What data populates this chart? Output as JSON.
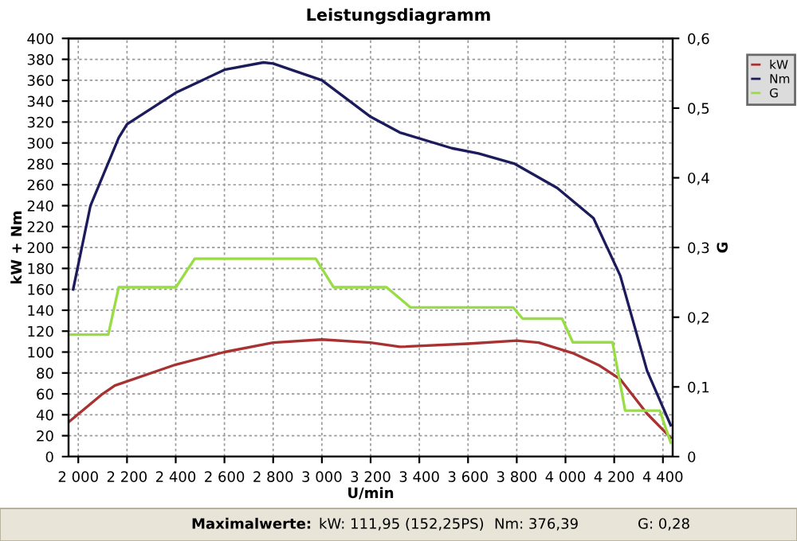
{
  "chart_data": {
    "type": "line",
    "title": "Leistungsdiagramm",
    "xlabel": "U/min",
    "ylabel": "kW + Nm",
    "y2label": "G",
    "xlim": [
      1960,
      4440
    ],
    "ylim": [
      0,
      400
    ],
    "y2lim": [
      0,
      0.6
    ],
    "xticks": [
      {
        "value": 2000,
        "label": "2 000"
      },
      {
        "value": 2200,
        "label": "2 200"
      },
      {
        "value": 2400,
        "label": "2 400"
      },
      {
        "value": 2600,
        "label": "2 600"
      },
      {
        "value": 2800,
        "label": "2 800"
      },
      {
        "value": 3000,
        "label": "3 000"
      },
      {
        "value": 3200,
        "label": "3 200"
      },
      {
        "value": 3400,
        "label": "3 400"
      },
      {
        "value": 3600,
        "label": "3 600"
      },
      {
        "value": 3800,
        "label": "3 800"
      },
      {
        "value": 4000,
        "label": "4 000"
      },
      {
        "value": 4200,
        "label": "4 200"
      },
      {
        "value": 4400,
        "label": "4 400"
      }
    ],
    "yticks": [
      0,
      20,
      40,
      60,
      80,
      100,
      120,
      140,
      160,
      180,
      200,
      220,
      240,
      260,
      280,
      300,
      320,
      340,
      360,
      380,
      400
    ],
    "y2ticks": [
      0,
      {
        "value": 0.1,
        "label": "0,1"
      },
      {
        "value": 0.2,
        "label": "0,2"
      },
      {
        "value": 0.3,
        "label": "0,3"
      },
      {
        "value": 0.4,
        "label": "0,4"
      },
      {
        "value": 0.5,
        "label": "0,5"
      },
      {
        "value": 0.6,
        "label": "0,6"
      }
    ],
    "grid": true,
    "legend": "top right",
    "line_style": "solid",
    "series": [
      {
        "name": "kW",
        "color": "#a83232",
        "x": [
          1960,
          2100,
          2150,
          2400,
          2600,
          2800,
          3000,
          3200,
          3320,
          3600,
          3800,
          3890,
          4030,
          4140,
          4225,
          4335,
          4432
        ],
        "values": [
          33,
          60,
          68,
          88,
          100,
          109,
          112,
          109,
          105,
          108,
          111,
          109,
          99,
          87,
          74,
          41,
          18
        ]
      },
      {
        "name": "Nm",
        "color": "#1c1c5c",
        "x": [
          1979,
          2050,
          2166,
          2200,
          2400,
          2600,
          2760,
          2800,
          3000,
          3200,
          3320,
          3533,
          3643,
          3792,
          3966,
          4115,
          4225,
          4335,
          4432
        ],
        "values": [
          160,
          240,
          305,
          318,
          348,
          370,
          377,
          376,
          360,
          325,
          310,
          295,
          290,
          280,
          257,
          228,
          173,
          82,
          30
        ]
      },
      {
        "name": "G",
        "color": "#99dd44",
        "axis": "y2",
        "x": [
          1960,
          2123,
          2166,
          2401,
          2478,
          2975,
          3048,
          3265,
          3364,
          3785,
          3824,
          3986,
          4030,
          4193,
          4245,
          4387,
          4432
        ],
        "values": [
          0.175,
          0.175,
          0.243,
          0.243,
          0.284,
          0.284,
          0.243,
          0.243,
          0.214,
          0.214,
          0.198,
          0.198,
          0.164,
          0.164,
          0.066,
          0.066,
          0.02
        ]
      }
    ],
    "annotations": [
      "Maximalwerte:",
      "kW: 111,95 (152,25PS)",
      "Nm: 376,39",
      "G: 0,28"
    ]
  }
}
